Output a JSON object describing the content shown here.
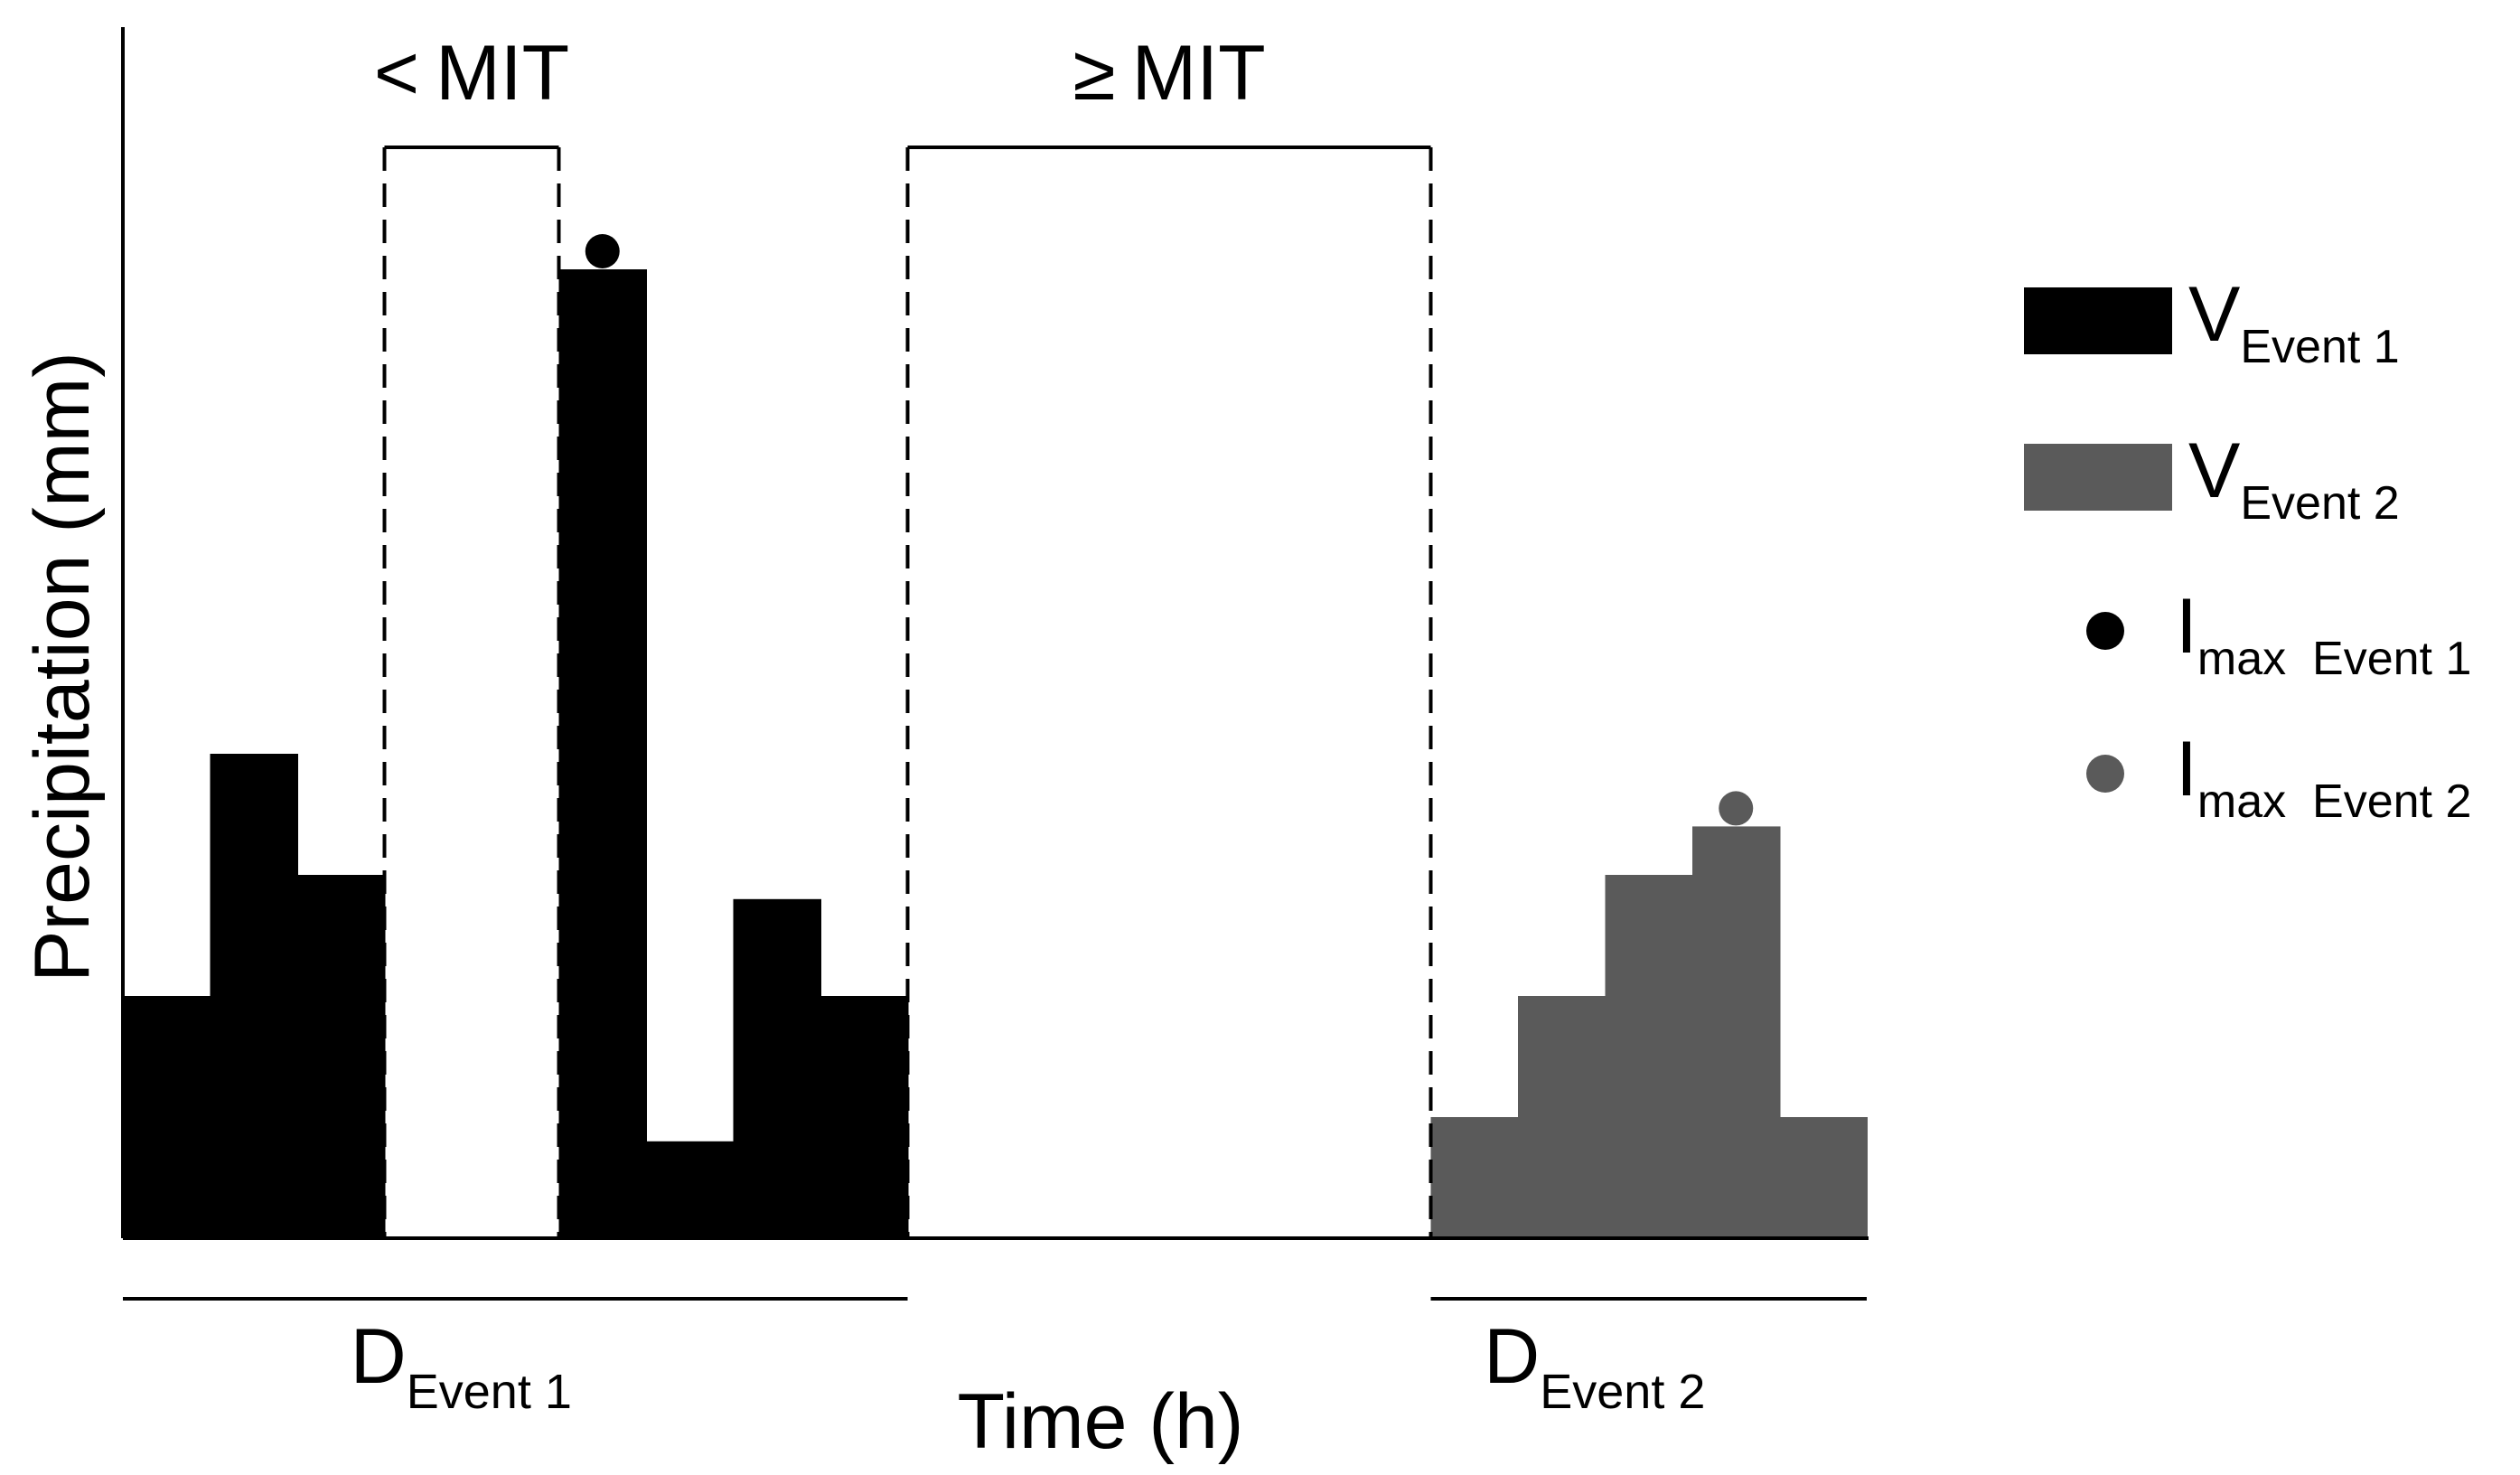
{
  "chart_data": {
    "type": "bar",
    "title": "",
    "xlabel": "Time (h)",
    "ylabel": "Precipitation (mm)",
    "ylim": [
      0,
      10
    ],
    "grid": false,
    "legend_position": "right",
    "colors": {
      "event1": "#000000",
      "event2": "#5a5a5a"
    },
    "hours": [
      1,
      2,
      3,
      4,
      5,
      6,
      7,
      8,
      9,
      10,
      11,
      12,
      13,
      14,
      15,
      16,
      17,
      18,
      19,
      20
    ],
    "series": [
      {
        "name": "Event 1",
        "values": [
          2,
          4,
          3,
          0,
          0,
          8,
          0.8,
          2.8,
          2,
          0,
          0,
          0,
          0,
          0,
          0,
          0,
          0,
          0,
          0,
          0
        ]
      },
      {
        "name": "Event 2",
        "values": [
          0,
          0,
          0,
          0,
          0,
          0,
          0,
          0,
          0,
          0,
          0,
          0,
          0,
          0,
          0,
          1,
          2,
          3,
          3.4,
          1
        ]
      }
    ],
    "peaks": [
      {
        "name": "Imax Event 1",
        "series": 0,
        "index": 5
      },
      {
        "name": "Imax Event 2",
        "series": 1,
        "index": 18
      }
    ],
    "annotations": {
      "lt_mit": {
        "symbol": "<",
        "text": "MIT",
        "from_hour": 4,
        "to_hour": 5
      },
      "ge_mit": {
        "symbol": "≥",
        "text": "MIT",
        "from_hour": 10,
        "to_hour": 15
      }
    },
    "durations": [
      {
        "letter": "D",
        "sub": "Event 1",
        "from_hour": 1,
        "to_hour": 9
      },
      {
        "letter": "D",
        "sub": "Event 2",
        "from_hour": 16,
        "to_hour": 20
      }
    ],
    "legend": [
      {
        "kind": "swatch",
        "color_key": "event1",
        "letter": "V",
        "sub": "Event 1"
      },
      {
        "kind": "swatch",
        "color_key": "event2",
        "letter": "V",
        "sub": "Event 2"
      },
      {
        "kind": "dot",
        "color_key": "event1",
        "letter": "I",
        "sub": "max  Event 1"
      },
      {
        "kind": "dot",
        "color_key": "event2",
        "letter": "I",
        "sub": "max  Event 2"
      }
    ]
  }
}
